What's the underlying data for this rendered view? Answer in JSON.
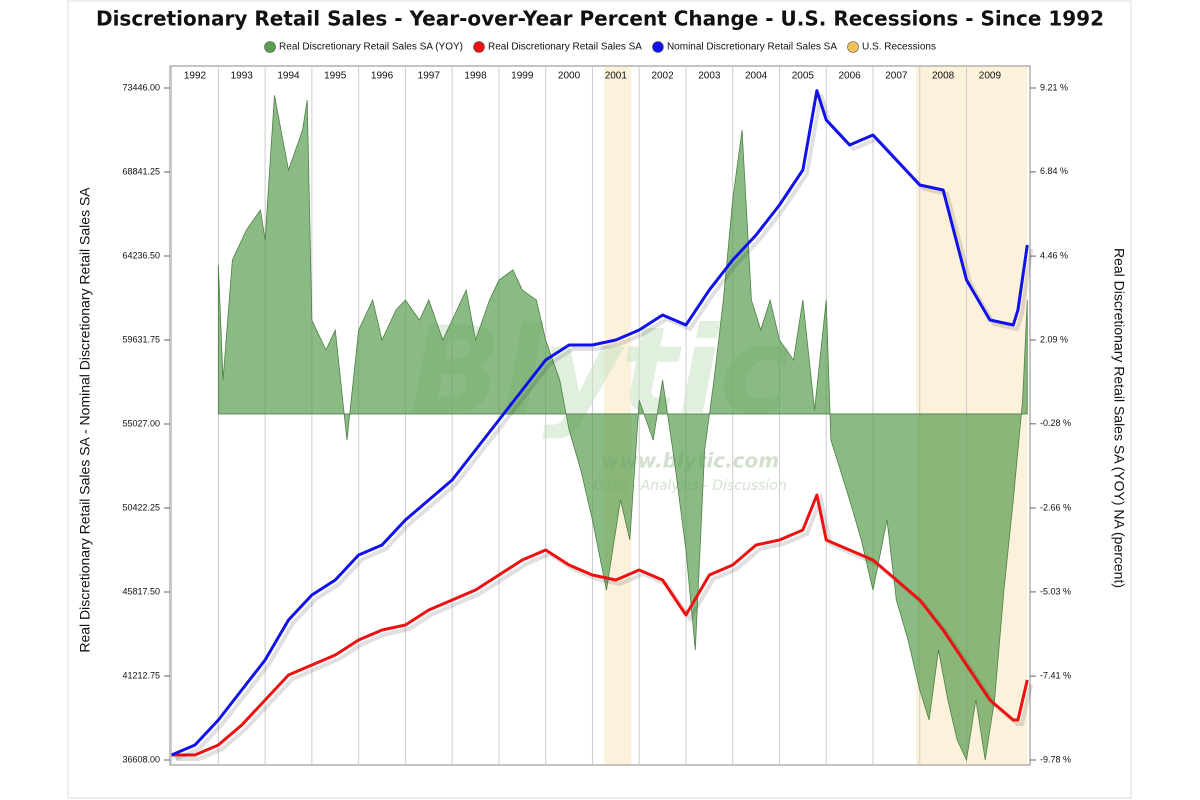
{
  "chart_data": {
    "type": "line",
    "title": "Discretionary Retail Sales - Year-over-Year Percent Change - U.S. Recessions - Since 1992",
    "y_label": "Real Discretionary Retail Sales SA  - Nominal Discretionary Retail Sales SA",
    "y2_label": "Real Discretionary Retail Sales SA (YOY) NA (percent)",
    "watermark": [
      "Blytic",
      "www.blytic.com",
      "Data - Analysis - Discussion"
    ],
    "xlim": [
      1992,
      2010.3
    ],
    "xticks": [
      1992,
      1993,
      1994,
      1995,
      1996,
      1997,
      1998,
      1999,
      2000,
      2001,
      2002,
      2003,
      2004,
      2005,
      2006,
      2007,
      2008,
      2009
    ],
    "ylim": [
      36608,
      73446
    ],
    "yticks": [
      {
        "value": 36608,
        "label": "36608.00"
      },
      {
        "value": 41212.75,
        "label": "41212.75"
      },
      {
        "value": 45817.5,
        "label": "45817.50"
      },
      {
        "value": 50422.25,
        "label": "50422.25"
      },
      {
        "value": 55027,
        "label": "55027.00"
      },
      {
        "value": 59631.75,
        "label": "59631.75"
      },
      {
        "value": 64236.5,
        "label": "64236.50"
      },
      {
        "value": 68841.25,
        "label": "68841.25"
      },
      {
        "value": 73446,
        "label": "73446.00"
      }
    ],
    "y2lim": [
      -9.78,
      9.21
    ],
    "y2ticks": [
      {
        "value": -9.78,
        "label": "-9.78 %"
      },
      {
        "value": -7.41,
        "label": "-7.41 %"
      },
      {
        "value": -5.03,
        "label": "-5.03 %"
      },
      {
        "value": -2.66,
        "label": "-2.66 %"
      },
      {
        "value": -0.28,
        "label": "-0.28 %"
      },
      {
        "value": 2.09,
        "label": "2.09 %"
      },
      {
        "value": 4.46,
        "label": "4.46 %"
      },
      {
        "value": 6.84,
        "label": "6.84 %"
      },
      {
        "value": 9.21,
        "label": "9.21 %"
      }
    ],
    "grid": true,
    "series": [
      {
        "name": "Real Discretionary Retail Sales SA (YOY)",
        "type": "area",
        "axis": "y2",
        "color": "#5a9e50",
        "x": [
          1993.0,
          1993.1,
          1993.3,
          1993.6,
          1993.9,
          1994.0,
          1994.2,
          1994.5,
          1994.8,
          1994.9,
          1995.0,
          1995.3,
          1995.5,
          1995.75,
          1996.0,
          1996.3,
          1996.5,
          1996.8,
          1997.0,
          1997.3,
          1997.5,
          1997.8,
          1998.0,
          1998.3,
          1998.5,
          1998.8,
          1999.0,
          1999.3,
          1999.5,
          1999.8,
          2000.0,
          2000.3,
          2000.5,
          2000.75,
          2001.0,
          2001.3,
          2001.6,
          2001.8,
          2002.0,
          2002.3,
          2002.5,
          2002.75,
          2003.0,
          2003.2,
          2003.4,
          2003.6,
          2003.8,
          2004.0,
          2004.2,
          2004.4,
          2004.6,
          2004.8,
          2005.0,
          2005.3,
          2005.5,
          2005.75,
          2006.0,
          2006.1,
          2006.3,
          2006.5,
          2006.75,
          2007.0,
          2007.3,
          2007.5,
          2007.75,
          2008.0,
          2008.2,
          2008.4,
          2008.6,
          2008.8,
          2009.0,
          2009.2,
          2009.4,
          2009.6,
          2009.8,
          2010.0,
          2010.2,
          2010.3
        ],
        "values": [
          4.21,
          0.96,
          4.35,
          5.2,
          5.76,
          4.92,
          9.0,
          6.89,
          8.02,
          8.87,
          2.65,
          1.81,
          2.37,
          -0.74,
          2.37,
          3.22,
          2.09,
          2.94,
          3.22,
          2.65,
          3.22,
          2.09,
          2.65,
          3.5,
          2.09,
          3.22,
          3.78,
          4.07,
          3.5,
          3.22,
          2.09,
          0.96,
          -0.45,
          -1.58,
          -3.0,
          -4.98,
          -2.43,
          -3.56,
          0.39,
          -0.74,
          0.96,
          -1.3,
          -3.85,
          -6.67,
          -1.02,
          0.96,
          3.22,
          6.05,
          8.02,
          3.22,
          2.37,
          3.22,
          2.09,
          1.52,
          3.22,
          0.11,
          3.22,
          -0.74,
          -1.58,
          -2.43,
          -3.56,
          -4.98,
          -3.0,
          -5.26,
          -6.39,
          -7.8,
          -8.65,
          -6.67,
          -8.08,
          -9.21,
          -9.78,
          -8.08,
          -9.78,
          -8.08,
          -4.98,
          -2.43,
          0.39,
          3.22
        ]
      },
      {
        "name": "Real Discretionary Retail Sales SA",
        "type": "line",
        "axis": "y",
        "color": "#ee1111",
        "x": [
          1992.0,
          1992.5,
          1993.0,
          1993.5,
          1994.0,
          1994.5,
          1995.0,
          1995.5,
          1996.0,
          1996.5,
          1997.0,
          1997.5,
          1998.0,
          1998.5,
          1999.0,
          1999.5,
          2000.0,
          2000.5,
          2001.0,
          2001.5,
          2002.0,
          2002.5,
          2003.0,
          2003.5,
          2004.0,
          2004.5,
          2005.0,
          2005.5,
          2005.8,
          2006.0,
          2006.5,
          2007.0,
          2007.5,
          2008.0,
          2008.5,
          2009.0,
          2009.5,
          2010.0,
          2010.1,
          2010.3
        ],
        "values": [
          36882,
          36882,
          37430,
          38527,
          39897,
          41268,
          41816,
          42364,
          43186,
          43735,
          44009,
          44831,
          45379,
          45927,
          46750,
          47572,
          48120,
          47298,
          46750,
          46476,
          47024,
          46476,
          44557,
          46750,
          47298,
          48394,
          48668,
          49217,
          51135,
          48668,
          48120,
          47572,
          46476,
          45379,
          43735,
          41816,
          39897,
          38801,
          38801,
          40994
        ]
      },
      {
        "name": "Nominal Discretionary Retail Sales SA",
        "type": "line",
        "axis": "y",
        "color": "#1111ee",
        "x": [
          1992.0,
          1992.5,
          1993.0,
          1993.5,
          1994.0,
          1994.5,
          1995.0,
          1995.5,
          1996.0,
          1996.5,
          1997.0,
          1997.5,
          1998.0,
          1998.5,
          1999.0,
          1999.5,
          2000.0,
          2000.5,
          2001.0,
          2001.5,
          2002.0,
          2002.5,
          2003.0,
          2003.5,
          2004.0,
          2004.5,
          2005.0,
          2005.5,
          2005.8,
          2006.0,
          2006.5,
          2007.0,
          2007.5,
          2008.0,
          2008.5,
          2009.0,
          2009.5,
          2010.0,
          2010.1,
          2010.3
        ],
        "values": [
          36882,
          37430,
          38801,
          40445,
          42090,
          44283,
          45653,
          46476,
          47846,
          48394,
          49765,
          50861,
          51958,
          53602,
          55247,
          56891,
          58536,
          59358,
          59358,
          59632,
          60181,
          61003,
          60455,
          62374,
          64018,
          65389,
          67033,
          68952,
          73300,
          71693,
          70322,
          70870,
          69500,
          68130,
          67855,
          62922,
          60729,
          60455,
          61277,
          64840
        ]
      }
    ],
    "recessions": {
      "name": "U.S. Recessions",
      "color": "#f2c35c",
      "periods": [
        [
          2001.25,
          2001.83
        ],
        [
          2007.92,
          2010.3
        ]
      ]
    }
  }
}
